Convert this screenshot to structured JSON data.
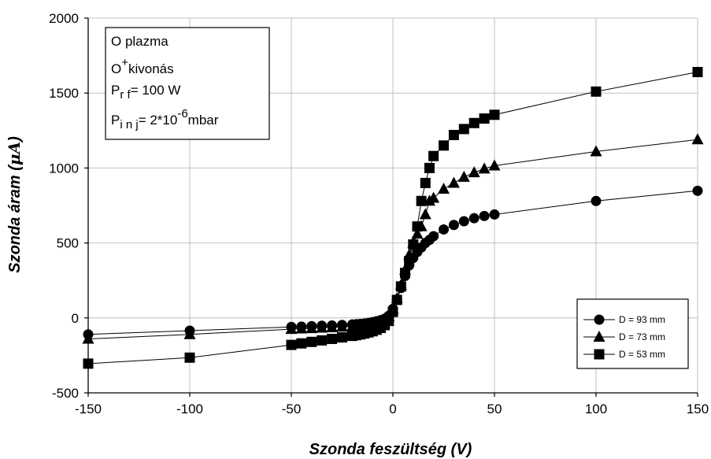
{
  "chart_data": {
    "type": "line",
    "xlabel": "Szonda feszültség (V)",
    "ylabel_main": "Szonda áram (",
    "ylabel_mu": "μA",
    "ylabel_end": ")",
    "xlim": [
      -150,
      150
    ],
    "ylim": [
      -500,
      2000
    ],
    "xticks": [
      -150,
      -100,
      -50,
      0,
      50,
      100,
      150
    ],
    "yticks": [
      -500,
      0,
      500,
      1000,
      1500,
      2000
    ],
    "grid": true,
    "legend_position": "bottom-right",
    "annotation": {
      "line1": "O plazma",
      "line2_base": "O",
      "line2_sup": "+",
      "line2_rest": "kivonás",
      "line3_base": "P",
      "line3_sub": "r f",
      "line3_rest": "= 100 W",
      "line4_base": "P",
      "line4_sub": "i n j",
      "line4_mid": "= 2*10",
      "line4_sup": "-6",
      "line4_rest": "mbar"
    },
    "series": [
      {
        "name": "D = 93 mm",
        "marker": "circle",
        "x": [
          -150,
          -100,
          -50,
          -45,
          -40,
          -35,
          -30,
          -25,
          -20,
          -18,
          -16,
          -14,
          -12,
          -10,
          -8,
          -6,
          -4,
          -2,
          0,
          2,
          4,
          6,
          8,
          10,
          12,
          14,
          16,
          18,
          20,
          25,
          30,
          35,
          40,
          45,
          50,
          100,
          150
        ],
        "y": [
          -110,
          -85,
          -60,
          -58,
          -55,
          -52,
          -50,
          -47,
          -44,
          -42,
          -40,
          -37,
          -33,
          -28,
          -22,
          -15,
          -5,
          15,
          60,
          120,
          200,
          280,
          350,
          400,
          440,
          470,
          500,
          520,
          545,
          590,
          620,
          645,
          665,
          680,
          690,
          780,
          848
        ]
      },
      {
        "name": "D = 73 mm",
        "marker": "triangle",
        "x": [
          -150,
          -100,
          -50,
          -45,
          -40,
          -35,
          -30,
          -25,
          -20,
          -18,
          -16,
          -14,
          -12,
          -10,
          -8,
          -6,
          -4,
          -2,
          0,
          2,
          4,
          6,
          8,
          10,
          12,
          14,
          16,
          18,
          20,
          25,
          30,
          35,
          40,
          45,
          50,
          100,
          150
        ],
        "y": [
          -140,
          -110,
          -75,
          -72,
          -70,
          -67,
          -64,
          -60,
          -57,
          -54,
          -51,
          -47,
          -43,
          -37,
          -30,
          -22,
          -10,
          10,
          60,
          130,
          220,
          320,
          420,
          500,
          560,
          610,
          690,
          780,
          800,
          860,
          900,
          940,
          970,
          995,
          1015,
          1110,
          1190
        ]
      },
      {
        "name": "D = 53 mm",
        "marker": "square",
        "x": [
          -150,
          -100,
          -50,
          -45,
          -40,
          -35,
          -30,
          -25,
          -20,
          -18,
          -16,
          -14,
          -12,
          -10,
          -8,
          -6,
          -4,
          -2,
          0,
          2,
          4,
          6,
          8,
          10,
          12,
          14,
          16,
          18,
          20,
          25,
          30,
          35,
          40,
          45,
          50,
          100,
          150
        ],
        "y": [
          -305,
          -265,
          -180,
          -170,
          -160,
          -150,
          -140,
          -130,
          -120,
          -115,
          -110,
          -104,
          -97,
          -89,
          -79,
          -67,
          -48,
          -20,
          40,
          120,
          210,
          300,
          380,
          490,
          610,
          780,
          900,
          1000,
          1080,
          1150,
          1220,
          1260,
          1300,
          1330,
          1355,
          1510,
          1640
        ]
      }
    ]
  }
}
